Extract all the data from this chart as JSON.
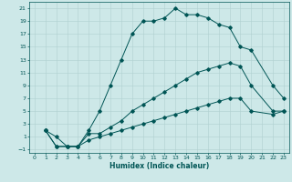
{
  "xlabel": "Humidex (Indice chaleur)",
  "bg_color": "#cde8e8",
  "grid_color": "#b0d0d0",
  "line_color": "#005555",
  "xlim": [
    -0.5,
    23.5
  ],
  "ylim": [
    -1.5,
    22
  ],
  "xticks": [
    0,
    1,
    2,
    3,
    4,
    5,
    6,
    7,
    8,
    9,
    10,
    11,
    12,
    13,
    14,
    15,
    16,
    17,
    18,
    19,
    20,
    21,
    22,
    23
  ],
  "yticks": [
    -1,
    1,
    3,
    5,
    7,
    9,
    11,
    13,
    15,
    17,
    19,
    21
  ],
  "curve1_x": [
    1,
    2,
    3,
    4,
    5,
    6,
    7,
    8,
    9,
    10,
    11,
    12,
    13,
    14,
    15,
    16,
    17,
    18,
    19,
    20,
    22,
    23
  ],
  "curve1_y": [
    2,
    1,
    -0.5,
    -0.5,
    2,
    5,
    9,
    13,
    17,
    19,
    19,
    19.5,
    21,
    20,
    20,
    19.5,
    18.5,
    18,
    15,
    14.5,
    9,
    7
  ],
  "curve2_x": [
    1,
    2,
    3,
    4,
    5,
    6,
    7,
    8,
    9,
    10,
    11,
    12,
    13,
    14,
    15,
    16,
    17,
    18,
    19,
    20,
    22,
    23
  ],
  "curve2_y": [
    2,
    -0.5,
    -0.5,
    -0.5,
    1.5,
    1.5,
    2.5,
    3.5,
    5,
    6,
    7,
    8,
    9,
    10,
    11,
    11.5,
    12,
    12.5,
    12,
    9,
    5,
    5
  ],
  "curve3_x": [
    1,
    2,
    3,
    4,
    5,
    6,
    7,
    8,
    9,
    10,
    11,
    12,
    13,
    14,
    15,
    16,
    17,
    18,
    19,
    20,
    22,
    23
  ],
  "curve3_y": [
    2,
    -0.5,
    -0.5,
    -0.5,
    0.5,
    1,
    1.5,
    2,
    2.5,
    3,
    3.5,
    4,
    4.5,
    5,
    5.5,
    6,
    6.5,
    7,
    7,
    5,
    4.5,
    5
  ]
}
